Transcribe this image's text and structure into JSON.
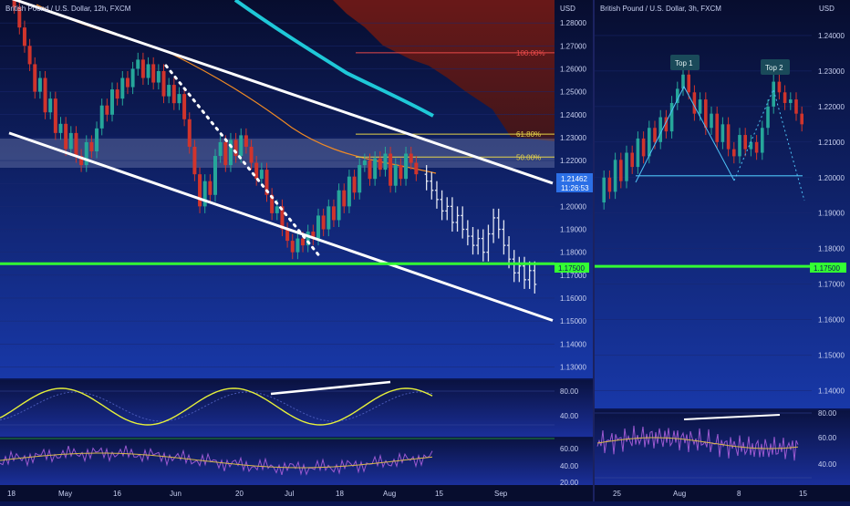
{
  "colors": {
    "bull": "#26a69a",
    "bear": "#d0342c",
    "projection": "#e0e4f0",
    "support": "#33ff33",
    "channel": "#ffffff",
    "ma_long": "#1fc8d8",
    "ma_short": "#f08a24",
    "fib_high": "#e84a4a",
    "fib_mid": "#e6d34a",
    "oscillator": "#e6f03a",
    "rsi": "#9b59d0"
  },
  "left_chart": {
    "title": "British Pound / U.S. Dollar, 12h, FXCM",
    "currency": "USD",
    "price_axis": [
      "1.28000",
      "1.27000",
      "1.26000",
      "1.25000",
      "1.24000",
      "1.23000",
      "1.22000",
      "1.21000",
      "1.20000",
      "1.19000",
      "1.18000",
      "1.17000",
      "1.16000",
      "1.15000",
      "1.14000",
      "1.13000"
    ],
    "current_price": "1.21462",
    "countdown": "11:26:53",
    "support_price": "1.17500",
    "fib_levels": [
      {
        "label": "100.00%",
        "price": 1.267
      },
      {
        "label": "61.80%",
        "price": 1.2315
      },
      {
        "label": "50.00%",
        "price": 1.2215
      }
    ],
    "osc1_axis": [
      "80.00",
      "40.00"
    ],
    "osc2_axis": [
      "60.00",
      "40.00",
      "20.00"
    ],
    "time_axis": [
      "18",
      "May",
      "16",
      "Jun",
      "20",
      "Jul",
      "18",
      "Aug",
      "15",
      "Sep"
    ]
  },
  "right_chart": {
    "title": "British Pound / U.S. Dollar, 3h, FXCM",
    "currency": "USD",
    "price_axis": [
      "1.24000",
      "1.23000",
      "1.22000",
      "1.21000",
      "1.20000",
      "1.19000",
      "1.18000",
      "1.17000",
      "1.16000",
      "1.15000",
      "1.14000"
    ],
    "support_price": "1.17500",
    "neckline_price": 1.2005,
    "top1_label": "Top 1",
    "top2_label": "Top 2",
    "osc_axis": [
      "80.00",
      "60.00",
      "40.00"
    ],
    "time_axis": [
      "25",
      "Aug",
      "8",
      "15"
    ]
  },
  "chart_data": [
    {
      "type": "candlestick",
      "title": "British Pound / U.S. Dollar, 12h, FXCM",
      "ylabel": "USD",
      "ylim": [
        1.125,
        1.29
      ],
      "support_level": 1.175,
      "current_price": 1.21462,
      "fib_levels": {
        "100.00%": 1.267,
        "61.80%": 1.2315,
        "50.00%": 1.2215
      },
      "x_ticks": [
        "18",
        "May",
        "16",
        "Jun",
        "20",
        "Jul",
        "18",
        "Aug",
        "15",
        "Sep"
      ],
      "price_path": [
        [
          0,
          1.291
        ],
        [
          1,
          1.287
        ],
        [
          2,
          1.278
        ],
        [
          3,
          1.27
        ],
        [
          4,
          1.262
        ],
        [
          5,
          1.25
        ],
        [
          6,
          1.256
        ],
        [
          7,
          1.241
        ],
        [
          8,
          1.247
        ],
        [
          9,
          1.232
        ],
        [
          10,
          1.236
        ],
        [
          11,
          1.225
        ],
        [
          12,
          1.232
        ],
        [
          13,
          1.222
        ],
        [
          14,
          1.218
        ],
        [
          15,
          1.228
        ],
        [
          16,
          1.224
        ],
        [
          17,
          1.234
        ],
        [
          18,
          1.244
        ],
        [
          19,
          1.24
        ],
        [
          20,
          1.251
        ],
        [
          21,
          1.247
        ],
        [
          22,
          1.256
        ],
        [
          23,
          1.252
        ],
        [
          24,
          1.26
        ],
        [
          25,
          1.264
        ],
        [
          26,
          1.256
        ],
        [
          27,
          1.262
        ],
        [
          28,
          1.254
        ],
        [
          29,
          1.259
        ],
        [
          30,
          1.248
        ],
        [
          31,
          1.253
        ],
        [
          32,
          1.245
        ],
        [
          33,
          1.249
        ],
        [
          34,
          1.238
        ],
        [
          35,
          1.226
        ],
        [
          36,
          1.214
        ],
        [
          37,
          1.2
        ],
        [
          38,
          1.211
        ],
        [
          39,
          1.205
        ],
        [
          40,
          1.222
        ],
        [
          41,
          1.228
        ],
        [
          42,
          1.218
        ],
        [
          43,
          1.229
        ],
        [
          44,
          1.222
        ],
        [
          45,
          1.231
        ],
        [
          46,
          1.226
        ],
        [
          47,
          1.219
        ],
        [
          48,
          1.212
        ],
        [
          49,
          1.216
        ],
        [
          50,
          1.205
        ],
        [
          51,
          1.197
        ],
        [
          52,
          1.2
        ],
        [
          53,
          1.19
        ],
        [
          54,
          1.185
        ],
        [
          55,
          1.18
        ],
        [
          56,
          1.186
        ],
        [
          57,
          1.183
        ],
        [
          58,
          1.189
        ],
        [
          59,
          1.186
        ],
        [
          60,
          1.196
        ],
        [
          61,
          1.19
        ],
        [
          62,
          1.2
        ],
        [
          63,
          1.194
        ],
        [
          64,
          1.207
        ],
        [
          65,
          1.2
        ],
        [
          66,
          1.213
        ],
        [
          67,
          1.206
        ],
        [
          68,
          1.218
        ],
        [
          69,
          1.22
        ],
        [
          70,
          1.212
        ],
        [
          71,
          1.221
        ],
        [
          72,
          1.216
        ],
        [
          73,
          1.223
        ],
        [
          74,
          1.209
        ],
        [
          75,
          1.218
        ],
        [
          76,
          1.212
        ],
        [
          77,
          1.223
        ],
        [
          78,
          1.219
        ],
        [
          79,
          1.214
        ]
      ],
      "projection_path": [
        [
          80,
          1.214
        ],
        [
          81,
          1.211
        ],
        [
          82,
          1.207
        ],
        [
          83,
          1.203
        ],
        [
          84,
          1.198
        ],
        [
          85,
          1.2
        ],
        [
          86,
          1.193
        ],
        [
          87,
          1.196
        ],
        [
          88,
          1.19
        ],
        [
          89,
          1.187
        ],
        [
          90,
          1.183
        ],
        [
          91,
          1.186
        ],
        [
          92,
          1.18
        ],
        [
          93,
          1.188
        ],
        [
          94,
          1.195
        ],
        [
          95,
          1.19
        ],
        [
          96,
          1.183
        ],
        [
          97,
          1.177
        ],
        [
          98,
          1.171
        ],
        [
          99,
          1.174
        ],
        [
          100,
          1.168
        ],
        [
          101,
          1.172
        ],
        [
          102,
          1.166
        ]
      ],
      "channel_upper": [
        [
          0,
          1.291
        ],
        [
          120,
          1.199
        ]
      ],
      "channel_lower": [
        [
          0,
          1.232
        ],
        [
          120,
          1.139
        ]
      ]
    },
    {
      "type": "candlestick",
      "title": "British Pound / U.S. Dollar, 3h, FXCM",
      "ylabel": "USD",
      "ylim": [
        1.135,
        1.25
      ],
      "support_level": 1.175,
      "neckline": 1.2005,
      "x_ticks": [
        "25",
        "Aug",
        "8",
        "15"
      ],
      "annotations": [
        "Top 1",
        "Top 2"
      ],
      "price_path": [
        [
          0,
          1.193
        ],
        [
          1,
          1.2
        ],
        [
          2,
          1.196
        ],
        [
          3,
          1.205
        ],
        [
          4,
          1.199
        ],
        [
          5,
          1.207
        ],
        [
          6,
          1.203
        ],
        [
          7,
          1.211
        ],
        [
          8,
          1.206
        ],
        [
          9,
          1.214
        ],
        [
          10,
          1.21
        ],
        [
          11,
          1.217
        ],
        [
          12,
          1.213
        ],
        [
          13,
          1.221
        ],
        [
          14,
          1.225
        ],
        [
          15,
          1.229
        ],
        [
          16,
          1.224
        ],
        [
          17,
          1.218
        ],
        [
          18,
          1.222
        ],
        [
          19,
          1.214
        ],
        [
          20,
          1.218
        ],
        [
          21,
          1.21
        ],
        [
          22,
          1.215
        ],
        [
          23,
          1.208
        ],
        [
          24,
          1.206
        ],
        [
          25,
          1.212
        ],
        [
          26,
          1.208
        ],
        [
          27,
          1.21
        ],
        [
          28,
          1.207
        ],
        [
          29,
          1.214
        ],
        [
          30,
          1.22
        ],
        [
          31,
          1.227
        ],
        [
          32,
          1.224
        ],
        [
          33,
          1.221
        ],
        [
          34,
          1.222
        ],
        [
          35,
          1.218
        ],
        [
          36,
          1.215
        ]
      ]
    }
  ]
}
